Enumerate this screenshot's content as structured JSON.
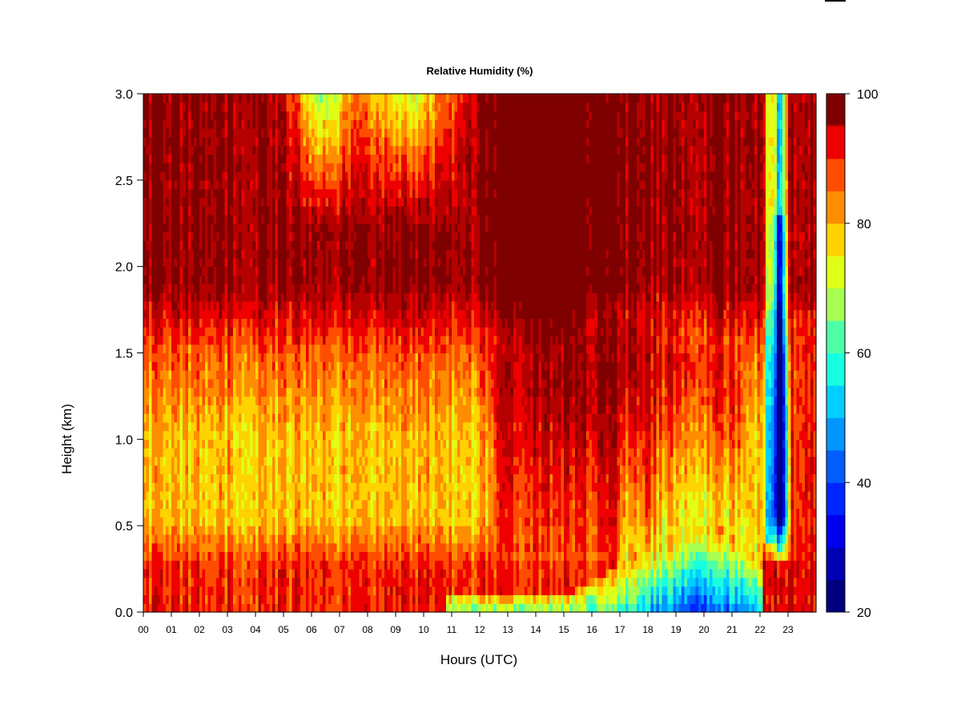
{
  "chart_data": {
    "type": "heatmap",
    "title": "Relative Humidity (%)",
    "xlabel": "Hours (UTC)",
    "ylabel": "Height (km)",
    "xlim": [
      0,
      24
    ],
    "ylim": [
      0,
      3
    ],
    "x_ticks": [
      "00",
      "01",
      "02",
      "03",
      "04",
      "05",
      "06",
      "07",
      "08",
      "09",
      "10",
      "11",
      "12",
      "13",
      "14",
      "15",
      "16",
      "17",
      "18",
      "19",
      "20",
      "21",
      "22",
      "23"
    ],
    "y_ticks": [
      "0.0",
      "0.5",
      "1.0",
      "1.5",
      "2.0",
      "2.5",
      "3.0"
    ],
    "colorbar": {
      "range": [
        20,
        100
      ],
      "ticks": [
        "20",
        "40",
        "60",
        "80",
        "100"
      ],
      "levels": [
        {
          "from": 20,
          "to": 25,
          "color": "#00007F"
        },
        {
          "from": 25,
          "to": 30,
          "color": "#0000B5"
        },
        {
          "from": 30,
          "to": 35,
          "color": "#0000EE"
        },
        {
          "from": 35,
          "to": 40,
          "color": "#0026FF"
        },
        {
          "from": 40,
          "to": 45,
          "color": "#005EFF"
        },
        {
          "from": 45,
          "to": 50,
          "color": "#0096FF"
        },
        {
          "from": 50,
          "to": 55,
          "color": "#00CEFF"
        },
        {
          "from": 55,
          "to": 60,
          "color": "#17FFE0"
        },
        {
          "from": 60,
          "to": 65,
          "color": "#4EFFA8"
        },
        {
          "from": 65,
          "to": 70,
          "color": "#A6FF51"
        },
        {
          "from": 70,
          "to": 75,
          "color": "#E0FF17"
        },
        {
          "from": 75,
          "to": 80,
          "color": "#FFD200"
        },
        {
          "from": 80,
          "to": 85,
          "color": "#FF8D00"
        },
        {
          "from": 85,
          "to": 90,
          "color": "#FF4D00"
        },
        {
          "from": 90,
          "to": 95,
          "color": "#EE0000"
        },
        {
          "from": 95,
          "to": 100,
          "color": "#B50000"
        },
        {
          "from": 100,
          "to": 100,
          "color": "#7F0000"
        }
      ]
    },
    "grid": false,
    "legend": "colorbar-right"
  }
}
